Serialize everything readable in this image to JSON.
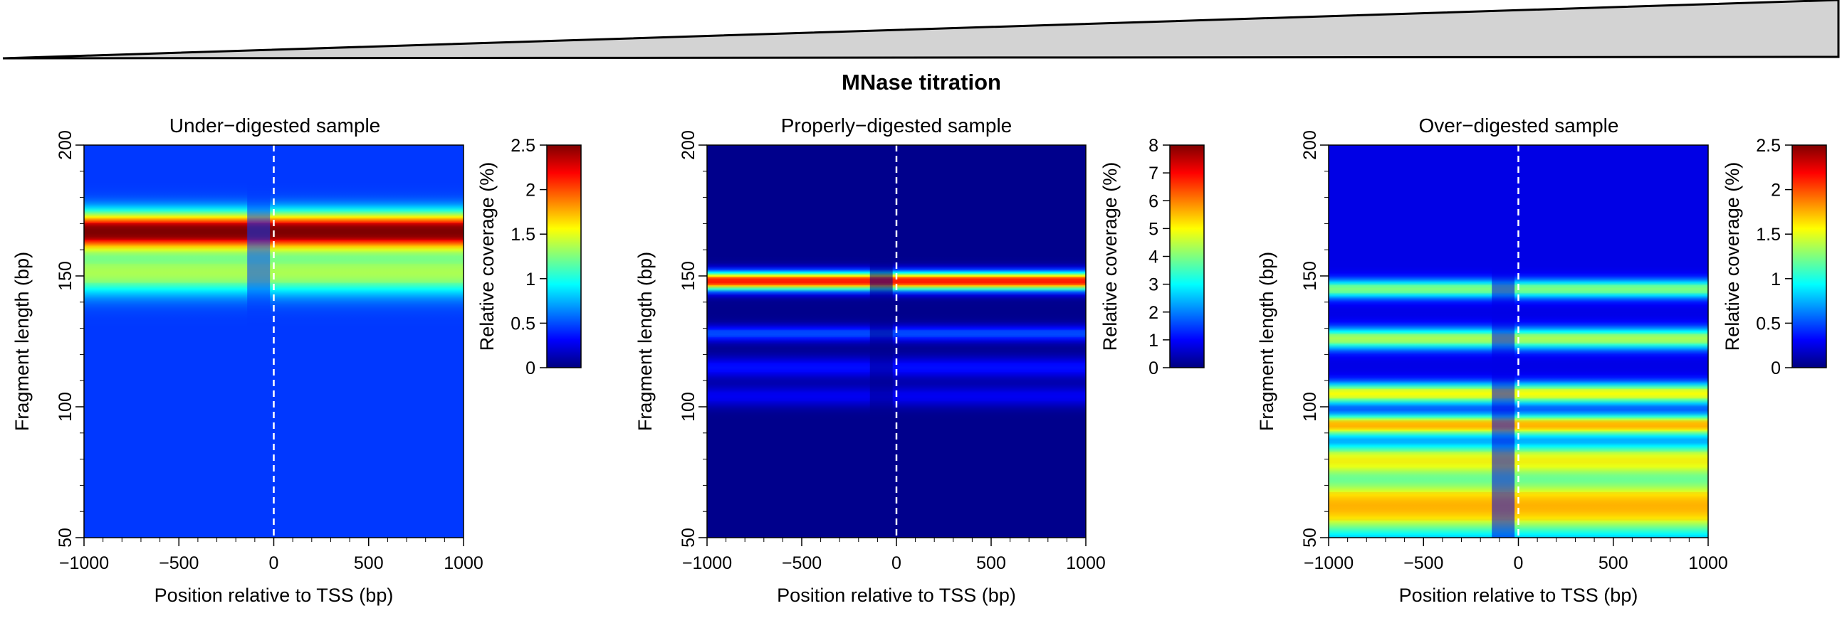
{
  "figure": {
    "suptitle": "MNase titration",
    "x_axis_label": "Position relative to TSS (bp)",
    "y_axis_label": "Fragment length (bp)",
    "colorbar_label": "Relative coverage (%)",
    "colormap": [
      "#00007f",
      "#0000ff",
      "#007fff",
      "#00ffff",
      "#7fff7f",
      "#ffff00",
      "#ff7f00",
      "#ff0000",
      "#7f0000"
    ],
    "wedge_fill": "#d3d3d3"
  },
  "chart_data": [
    {
      "type": "heatmap",
      "title": "Under−digested sample",
      "xlabel": "Position relative to TSS (bp)",
      "ylabel": "Fragment length (bp)",
      "xlim": [
        -1000,
        1000
      ],
      "ylim": [
        50,
        200
      ],
      "x_ticks": [
        "−1000",
        "−500",
        "0",
        "500",
        "1000"
      ],
      "y_ticks": [
        "50",
        "100",
        "150",
        "200"
      ],
      "colorbar": {
        "label": "Relative coverage (%)",
        "range": [
          0,
          2.5
        ],
        "ticks": [
          "0",
          "0.5",
          "1",
          "1.5",
          "2",
          "2.5"
        ]
      },
      "tss_line_x": 0,
      "bands": [
        {
          "center_bp": 167,
          "width_bp": 7,
          "value": 2.1
        },
        {
          "center_bp": 151,
          "width_bp": 8,
          "value": 0.9
        }
      ],
      "background_value": 0.45
    },
    {
      "type": "heatmap",
      "title": "Properly−digested sample",
      "xlabel": "Position relative to TSS (bp)",
      "ylabel": "Fragment length (bp)",
      "xlim": [
        -1000,
        1000
      ],
      "ylim": [
        50,
        200
      ],
      "x_ticks": [
        "−1000",
        "−500",
        "0",
        "500",
        "1000"
      ],
      "y_ticks": [
        "50",
        "100",
        "150",
        "200"
      ],
      "colorbar": {
        "label": "Relative coverage (%)",
        "range": [
          0,
          8
        ],
        "ticks": [
          "0",
          "1",
          "2",
          "3",
          "4",
          "5",
          "6",
          "7",
          "8"
        ]
      },
      "tss_line_x": 0,
      "bands": [
        {
          "center_bp": 148,
          "width_bp": 3.5,
          "value": 6.8
        },
        {
          "center_bp": 128,
          "width_bp": 3,
          "value": 1.5
        },
        {
          "center_bp": 115,
          "width_bp": 4,
          "value": 1.0
        },
        {
          "center_bp": 104,
          "width_bp": 4,
          "value": 0.8
        }
      ],
      "background_value": 0.1
    },
    {
      "type": "heatmap",
      "title": "Over−digested sample",
      "xlabel": "Position relative to TSS (bp)",
      "ylabel": "Fragment length (bp)",
      "xlim": [
        -1000,
        1000
      ],
      "ylim": [
        50,
        200
      ],
      "x_ticks": [
        "−1000",
        "−500",
        "0",
        "500",
        "1000"
      ],
      "y_ticks": [
        "50",
        "100",
        "150",
        "200"
      ],
      "colorbar": {
        "label": "Relative coverage (%)",
        "range": [
          0,
          2.5
        ],
        "ticks": [
          "0",
          "0.5",
          "1",
          "1.5",
          "2",
          "2.5"
        ]
      },
      "tss_line_x": 0,
      "bands": [
        {
          "center_bp": 145,
          "width_bp": 3.5,
          "value": 1.0
        },
        {
          "center_bp": 126,
          "width_bp": 4,
          "value": 1.1
        },
        {
          "center_bp": 105,
          "width_bp": 4,
          "value": 1.3
        },
        {
          "center_bp": 93,
          "width_bp": 4,
          "value": 1.5
        },
        {
          "center_bp": 80,
          "width_bp": 6,
          "value": 1.2
        },
        {
          "center_bp": 62,
          "width_bp": 12,
          "value": 1.5
        }
      ],
      "background_value": 0.25
    }
  ]
}
